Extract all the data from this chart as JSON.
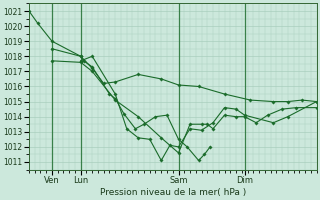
{
  "title": "Pression niveau de la mer( hPa )",
  "ylabel_ticks": [
    1011,
    1012,
    1013,
    1014,
    1015,
    1016,
    1017,
    1018,
    1019,
    1020,
    1021
  ],
  "ylim": [
    1010.5,
    1021.5
  ],
  "xlim": [
    0,
    100
  ],
  "xtick_positions": [
    8,
    18,
    52,
    75
  ],
  "xtick_labels": [
    "Ven",
    "Lun",
    "Sam",
    "Dim"
  ],
  "vline_positions": [
    8,
    18,
    52,
    75
  ],
  "bg_color": "#cce8dc",
  "grid_color": "#aacfbe",
  "line_color": "#1a6b2a",
  "series": [
    [
      0,
      1021,
      3,
      1020.2,
      8,
      1019,
      18,
      1018,
      19,
      1017.7,
      22,
      1017.3,
      28,
      1015.5,
      30,
      1015.2,
      33,
      1014.2,
      37,
      1013.2,
      40,
      1013.5,
      44,
      1014.0,
      48,
      1014.1,
      52,
      1012.5,
      55,
      1012.0,
      59,
      1011.1,
      61,
      1011.5,
      63,
      1012.0
    ],
    [
      8,
      1018.5,
      18,
      1018.0,
      22,
      1017.2,
      26,
      1016.2,
      30,
      1016.3,
      38,
      1016.8,
      46,
      1016.5,
      52,
      1016.1,
      59,
      1016.0,
      68,
      1015.5,
      77,
      1015.1,
      85,
      1015.0,
      90,
      1015.0,
      95,
      1015.1,
      100,
      1015.0
    ],
    [
      8,
      1017.7,
      18,
      1017.6,
      22,
      1017.0,
      30,
      1015.1,
      38,
      1014.0,
      46,
      1012.6,
      52,
      1011.6,
      56,
      1013.5,
      60,
      1013.5,
      62,
      1013.5,
      64,
      1013.2,
      68,
      1014.1,
      72,
      1014.0,
      75,
      1014.0,
      79,
      1013.6,
      83,
      1014.1,
      88,
      1014.5,
      93,
      1014.6,
      100,
      1014.6
    ],
    [
      18,
      1017.7,
      22,
      1018.0,
      30,
      1015.5,
      34,
      1013.2,
      38,
      1012.6,
      42,
      1012.5,
      46,
      1011.1,
      49,
      1012.1,
      52,
      1012.0,
      56,
      1013.2,
      60,
      1013.1,
      64,
      1013.6,
      68,
      1014.6,
      72,
      1014.5,
      75,
      1014.1,
      85,
      1013.6,
      90,
      1014.0,
      100,
      1015.0
    ]
  ]
}
